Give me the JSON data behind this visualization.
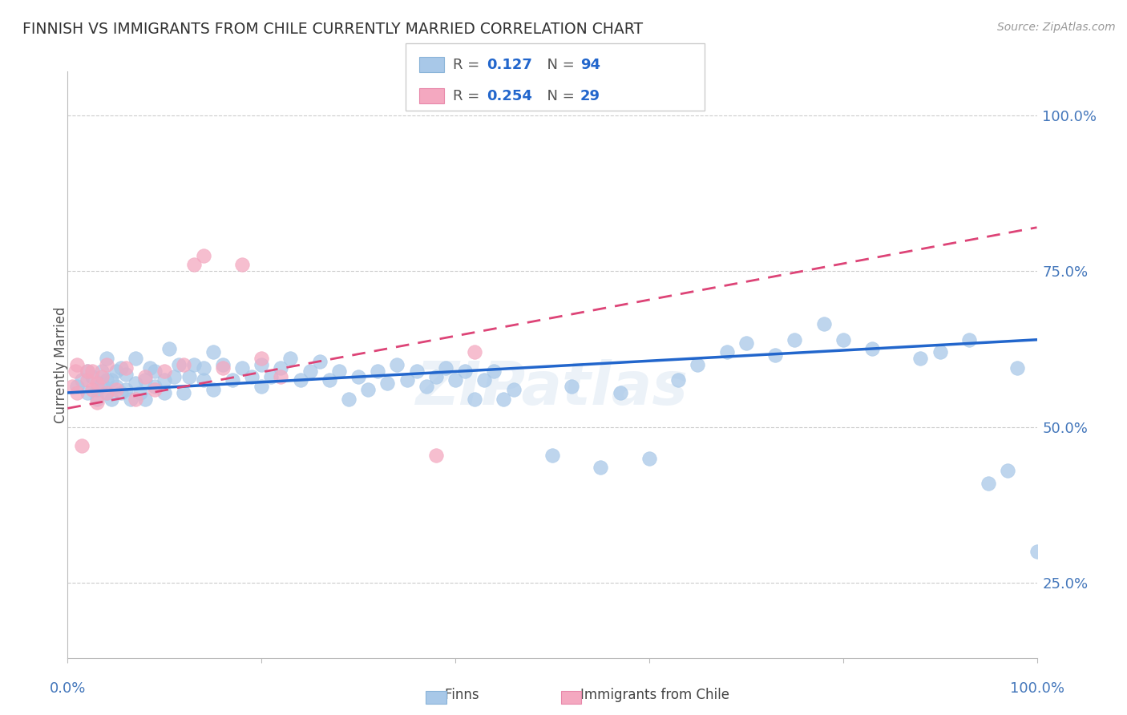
{
  "title": "FINNISH VS IMMIGRANTS FROM CHILE CURRENTLY MARRIED CORRELATION CHART",
  "source": "Source: ZipAtlas.com",
  "ylabel": "Currently Married",
  "ytick_labels": [
    "100.0%",
    "75.0%",
    "50.0%",
    "25.0%"
  ],
  "ytick_values": [
    1.0,
    0.75,
    0.5,
    0.25
  ],
  "xlim": [
    0.0,
    1.0
  ],
  "ylim": [
    0.13,
    1.07
  ],
  "watermark": "ZIPatlas",
  "blue_color": "#a8c8e8",
  "pink_color": "#f4a8c0",
  "trend_blue": "#2266cc",
  "trend_pink": "#dd4477",
  "axis_color": "#4477bb",
  "grid_color": "#cccccc",
  "title_color": "#333333",
  "blue_scatter_x": [
    0.01,
    0.015,
    0.02,
    0.02,
    0.025,
    0.03,
    0.03,
    0.035,
    0.035,
    0.04,
    0.04,
    0.04,
    0.045,
    0.045,
    0.05,
    0.05,
    0.055,
    0.055,
    0.06,
    0.06,
    0.065,
    0.07,
    0.07,
    0.075,
    0.08,
    0.08,
    0.085,
    0.09,
    0.09,
    0.1,
    0.1,
    0.105,
    0.11,
    0.115,
    0.12,
    0.125,
    0.13,
    0.14,
    0.14,
    0.15,
    0.15,
    0.16,
    0.17,
    0.18,
    0.19,
    0.2,
    0.2,
    0.21,
    0.22,
    0.23,
    0.24,
    0.25,
    0.26,
    0.27,
    0.28,
    0.29,
    0.3,
    0.31,
    0.32,
    0.33,
    0.34,
    0.35,
    0.36,
    0.37,
    0.38,
    0.39,
    0.4,
    0.41,
    0.42,
    0.43,
    0.44,
    0.45,
    0.46,
    0.5,
    0.52,
    0.55,
    0.57,
    0.6,
    0.63,
    0.65,
    0.68,
    0.7,
    0.73,
    0.75,
    0.78,
    0.8,
    0.83,
    0.88,
    0.9,
    0.93,
    0.95,
    0.97,
    0.98,
    1.0
  ],
  "blue_scatter_y": [
    0.565,
    0.575,
    0.59,
    0.555,
    0.58,
    0.56,
    0.545,
    0.57,
    0.59,
    0.575,
    0.555,
    0.61,
    0.545,
    0.575,
    0.565,
    0.59,
    0.555,
    0.595,
    0.56,
    0.585,
    0.545,
    0.57,
    0.61,
    0.555,
    0.575,
    0.545,
    0.595,
    0.565,
    0.59,
    0.575,
    0.555,
    0.625,
    0.58,
    0.6,
    0.555,
    0.58,
    0.6,
    0.575,
    0.595,
    0.56,
    0.62,
    0.6,
    0.575,
    0.595,
    0.58,
    0.6,
    0.565,
    0.58,
    0.595,
    0.61,
    0.575,
    0.59,
    0.605,
    0.575,
    0.59,
    0.545,
    0.58,
    0.56,
    0.59,
    0.57,
    0.6,
    0.575,
    0.59,
    0.565,
    0.58,
    0.595,
    0.575,
    0.59,
    0.545,
    0.575,
    0.59,
    0.545,
    0.56,
    0.455,
    0.565,
    0.435,
    0.555,
    0.45,
    0.575,
    0.6,
    0.62,
    0.635,
    0.615,
    0.64,
    0.665,
    0.64,
    0.625,
    0.61,
    0.62,
    0.64,
    0.41,
    0.43,
    0.595,
    0.3
  ],
  "pink_scatter_x": [
    0.005,
    0.008,
    0.01,
    0.01,
    0.015,
    0.02,
    0.02,
    0.025,
    0.025,
    0.03,
    0.03,
    0.035,
    0.04,
    0.04,
    0.05,
    0.06,
    0.07,
    0.08,
    0.09,
    0.1,
    0.12,
    0.13,
    0.14,
    0.16,
    0.18,
    0.2,
    0.22,
    0.38,
    0.42
  ],
  "pink_scatter_y": [
    0.565,
    0.59,
    0.555,
    0.6,
    0.47,
    0.575,
    0.59,
    0.56,
    0.59,
    0.57,
    0.54,
    0.58,
    0.555,
    0.6,
    0.56,
    0.595,
    0.545,
    0.58,
    0.56,
    0.59,
    0.6,
    0.76,
    0.775,
    0.595,
    0.76,
    0.61,
    0.58,
    0.455,
    0.62
  ],
  "trend_blue_start_y": 0.555,
  "trend_blue_end_y": 0.64,
  "trend_pink_start_y": 0.53,
  "trend_pink_end_y": 0.82
}
